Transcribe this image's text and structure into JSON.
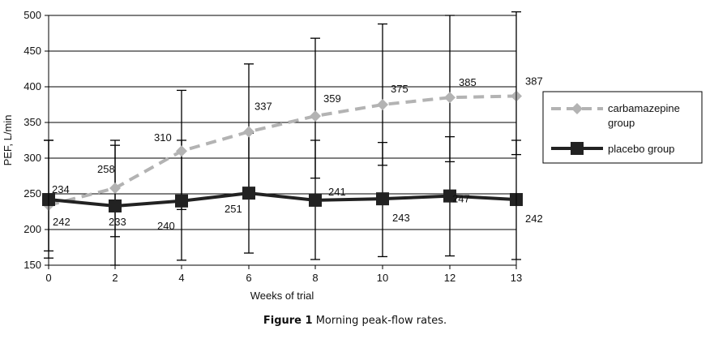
{
  "chart_data": {
    "type": "line",
    "title": "",
    "xlabel": "Weeks of trial",
    "ylabel": "PEF, L/min",
    "categories": [
      "0",
      "2",
      "4",
      "6",
      "8",
      "10",
      "12",
      "13"
    ],
    "ylim": [
      150,
      500
    ],
    "yticks": [
      150,
      200,
      250,
      300,
      350,
      400,
      450,
      500
    ],
    "grid": "horizontal",
    "legend": "right",
    "series": [
      {
        "name": "carbamazepine group",
        "style": "dashed",
        "marker": "diamond",
        "color": "#b3b3b3",
        "values": [
          234,
          258,
          310,
          337,
          359,
          375,
          385,
          387
        ],
        "labels": [
          "234",
          "258",
          "310",
          "337",
          "359",
          "375",
          "385",
          "387"
        ],
        "error_low": [
          170,
          190,
          228,
          250,
          272,
          290,
          295,
          305
        ],
        "error_high": [
          325,
          325,
          395,
          432,
          468,
          488,
          500,
          505
        ]
      },
      {
        "name": "placebo group",
        "style": "solid",
        "marker": "square",
        "color": "#222222",
        "values": [
          242,
          233,
          240,
          251,
          241,
          243,
          247,
          242
        ],
        "labels": [
          "242",
          "233",
          "240",
          "251",
          "241",
          "243",
          "247",
          "242"
        ],
        "error_low": [
          160,
          150,
          157,
          167,
          158,
          162,
          163,
          158
        ],
        "error_high": [
          325,
          318,
          325,
          335,
          325,
          322,
          330,
          325
        ]
      }
    ]
  },
  "caption": {
    "figure": "Figure 1",
    "text": "Morning peak-flow rates."
  }
}
